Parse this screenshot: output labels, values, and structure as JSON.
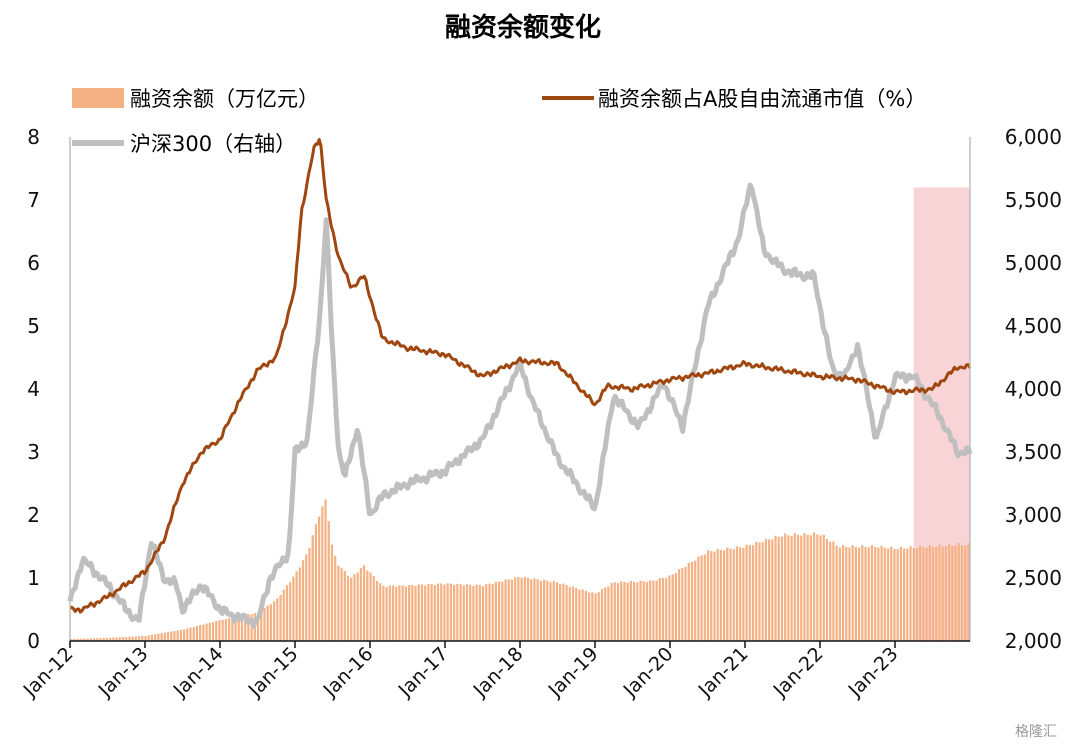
{
  "chart_data": {
    "type": "line",
    "title": "融资余额变化",
    "x_ticks": [
      "Jan-12",
      "Jan-13",
      "Jan-14",
      "Jan-15",
      "Jan-16",
      "Jan-17",
      "Jan-18",
      "Jan-19",
      "Jan-20",
      "Jan-21",
      "Jan-22",
      "Jan-23"
    ],
    "x_range": [
      "2012-01",
      "2023-12"
    ],
    "left_axis": {
      "range": [
        0,
        8
      ],
      "ticks": [
        "0",
        "1",
        "2",
        "3",
        "4",
        "5",
        "6",
        "7",
        "8"
      ]
    },
    "right_axis": {
      "range": [
        2000,
        6000
      ],
      "ticks": [
        "2,000",
        "2,500",
        "3,000",
        "3,500",
        "4,000",
        "4,500",
        "5,000",
        "5,500",
        "6,000"
      ]
    },
    "legend_position": "top",
    "grid": false,
    "series": [
      {
        "name": "融资余额（万亿元）",
        "kind": "bar",
        "axis": "left",
        "color": "#F4B183",
        "points": [
          [
            "2012-01",
            0.03
          ],
          [
            "2012-07",
            0.05
          ],
          [
            "2013-01",
            0.08
          ],
          [
            "2013-07",
            0.18
          ],
          [
            "2014-01",
            0.33
          ],
          [
            "2014-07",
            0.45
          ],
          [
            "2014-10",
            0.65
          ],
          [
            "2015-01",
            1.05
          ],
          [
            "2015-03",
            1.4
          ],
          [
            "2015-05",
            2.05
          ],
          [
            "2015-06",
            2.25
          ],
          [
            "2015-07",
            1.45
          ],
          [
            "2015-08",
            1.2
          ],
          [
            "2015-10",
            1.0
          ],
          [
            "2015-12",
            1.2
          ],
          [
            "2016-03",
            0.87
          ],
          [
            "2016-07",
            0.88
          ],
          [
            "2017-01",
            0.91
          ],
          [
            "2017-07",
            0.88
          ],
          [
            "2018-01",
            1.02
          ],
          [
            "2018-07",
            0.93
          ],
          [
            "2019-01",
            0.75
          ],
          [
            "2019-04",
            0.93
          ],
          [
            "2019-10",
            0.95
          ],
          [
            "2020-01",
            1.03
          ],
          [
            "2020-07",
            1.42
          ],
          [
            "2021-01",
            1.5
          ],
          [
            "2021-07",
            1.68
          ],
          [
            "2022-01",
            1.7
          ],
          [
            "2022-04",
            1.5
          ],
          [
            "2022-10",
            1.5
          ],
          [
            "2023-01",
            1.47
          ],
          [
            "2023-07",
            1.5
          ],
          [
            "2023-11",
            1.53
          ]
        ]
      },
      {
        "name": "融资余额占A股自由流通市值（%）",
        "kind": "line",
        "axis": "left",
        "color": "#A0460F",
        "points": [
          [
            "2012-01",
            0.5
          ],
          [
            "2012-03",
            0.5
          ],
          [
            "2012-07",
            0.7
          ],
          [
            "2013-01",
            1.1
          ],
          [
            "2013-04",
            1.6
          ],
          [
            "2013-07",
            2.5
          ],
          [
            "2013-10",
            3.0
          ],
          [
            "2014-01",
            3.2
          ],
          [
            "2014-04",
            3.8
          ],
          [
            "2014-07",
            4.3
          ],
          [
            "2014-10",
            4.5
          ],
          [
            "2015-01",
            5.6
          ],
          [
            "2015-02",
            6.8
          ],
          [
            "2015-04",
            7.8
          ],
          [
            "2015-05",
            8.0
          ],
          [
            "2015-06",
            7.0
          ],
          [
            "2015-07",
            6.5
          ],
          [
            "2015-08",
            6.1
          ],
          [
            "2015-10",
            5.6
          ],
          [
            "2015-12",
            5.8
          ],
          [
            "2016-03",
            4.8
          ],
          [
            "2016-07",
            4.65
          ],
          [
            "2017-01",
            4.55
          ],
          [
            "2017-07",
            4.2
          ],
          [
            "2018-01",
            4.45
          ],
          [
            "2018-07",
            4.4
          ],
          [
            "2019-01",
            3.75
          ],
          [
            "2019-03",
            4.05
          ],
          [
            "2019-07",
            4.0
          ],
          [
            "2020-01",
            4.15
          ],
          [
            "2020-07",
            4.25
          ],
          [
            "2021-01",
            4.4
          ],
          [
            "2021-07",
            4.3
          ],
          [
            "2022-01",
            4.2
          ],
          [
            "2022-07",
            4.15
          ],
          [
            "2023-01",
            3.95
          ],
          [
            "2023-07",
            4.0
          ],
          [
            "2023-11",
            4.35
          ]
        ]
      },
      {
        "name": "沪深300（右轴）",
        "kind": "line",
        "axis": "right",
        "color": "#BFBFBF",
        "points": [
          [
            "2012-01",
            2300
          ],
          [
            "2012-03",
            2650
          ],
          [
            "2012-07",
            2450
          ],
          [
            "2012-10",
            2250
          ],
          [
            "2012-12",
            2150
          ],
          [
            "2013-02",
            2800
          ],
          [
            "2013-04",
            2500
          ],
          [
            "2013-06",
            2450
          ],
          [
            "2013-07",
            2250
          ],
          [
            "2013-10",
            2450
          ],
          [
            "2014-01",
            2250
          ],
          [
            "2014-03",
            2200
          ],
          [
            "2014-07",
            2150
          ],
          [
            "2014-09",
            2500
          ],
          [
            "2014-12",
            2700
          ],
          [
            "2015-01",
            3500
          ],
          [
            "2015-03",
            3600
          ],
          [
            "2015-05",
            4600
          ],
          [
            "2015-06",
            5350
          ],
          [
            "2015-07",
            4300
          ],
          [
            "2015-08",
            3500
          ],
          [
            "2015-09",
            3300
          ],
          [
            "2015-11",
            3700
          ],
          [
            "2016-01",
            3000
          ],
          [
            "2016-03",
            3150
          ],
          [
            "2016-07",
            3250
          ],
          [
            "2017-01",
            3350
          ],
          [
            "2017-07",
            3600
          ],
          [
            "2018-01",
            4200
          ],
          [
            "2018-03",
            3900
          ],
          [
            "2018-07",
            3450
          ],
          [
            "2018-10",
            3250
          ],
          [
            "2019-01",
            3050
          ],
          [
            "2019-04",
            3950
          ],
          [
            "2019-08",
            3700
          ],
          [
            "2019-12",
            4050
          ],
          [
            "2020-03",
            3700
          ],
          [
            "2020-07",
            4650
          ],
          [
            "2020-12",
            5200
          ],
          [
            "2021-02",
            5650
          ],
          [
            "2021-04",
            5100
          ],
          [
            "2021-07",
            4950
          ],
          [
            "2021-10",
            4900
          ],
          [
            "2021-12",
            4900
          ],
          [
            "2022-03",
            4150
          ],
          [
            "2022-05",
            4100
          ],
          [
            "2022-07",
            4350
          ],
          [
            "2022-10",
            3600
          ],
          [
            "2023-01",
            4100
          ],
          [
            "2023-04",
            4100
          ],
          [
            "2023-08",
            3800
          ],
          [
            "2023-11",
            3500
          ]
        ]
      }
    ],
    "highlight": {
      "from": "2023-04",
      "to": "2023-12",
      "top": 5600,
      "color": "#F7C6C9"
    },
    "watermark": "格隆汇"
  }
}
